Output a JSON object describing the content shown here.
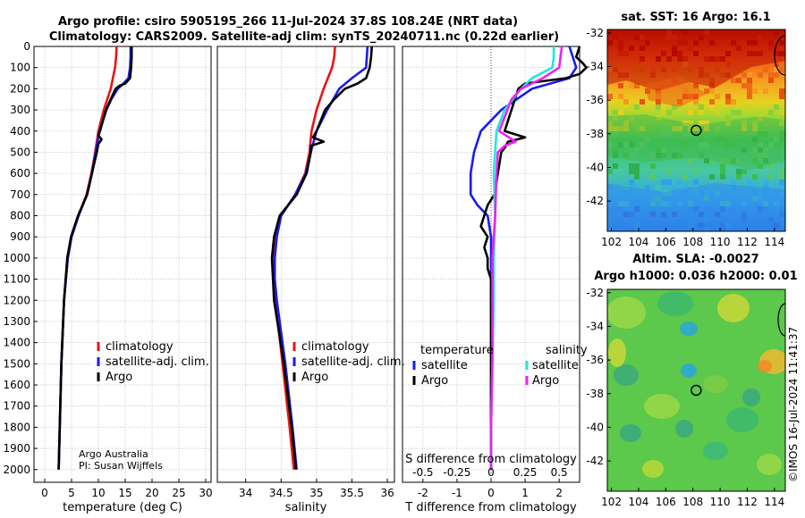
{
  "header": {
    "title_line1": "Argo profile: csiro 5905195_266 11-Jul-2024 37.8S 108.24E (NRT data)",
    "title_line2": "Climatology: CARS2009. Satellite-adj clim: synTS_20240711.nc (0.22d earlier)"
  },
  "depth_ticks": [
    0,
    100,
    200,
    300,
    400,
    500,
    600,
    700,
    800,
    900,
    1000,
    1100,
    1200,
    1300,
    1400,
    1500,
    1600,
    1700,
    1800,
    1900,
    2000
  ],
  "credits": {
    "line1": "Argo Australia",
    "line2": "PI: Susan Wijffels"
  },
  "footer": "©IMOS 16-Jul-2024 11:41:37",
  "colors": {
    "climatology": "#ee1111",
    "satellite": "#1a1aee",
    "argo": "#000000",
    "sat_salinity": "#22e4e4",
    "argo_salinity": "#ee22ee"
  },
  "chart_data": [
    {
      "id": "temperature",
      "type": "line",
      "xlabel": "temperature (deg C)",
      "ylabel": "",
      "xlim": [
        -2,
        31
      ],
      "ylim": [
        2060,
        0
      ],
      "xticks": [
        0,
        5,
        10,
        15,
        20,
        25,
        30
      ],
      "legend": [
        "climatology",
        "satellite-adj. clim.",
        "Argo"
      ],
      "series": [
        {
          "name": "climatology",
          "color": "#ee1111",
          "depth": [
            0,
            50,
            100,
            200,
            300,
            400,
            500,
            600,
            700,
            800,
            900,
            1000,
            1200,
            1500,
            1800,
            2000
          ],
          "values": [
            13.4,
            13.3,
            13.1,
            12.3,
            11.0,
            10.0,
            9.4,
            8.7,
            7.8,
            6.3,
            5.0,
            4.3,
            3.6,
            3.1,
            2.8,
            2.6
          ]
        },
        {
          "name": "satellite-adj. clim.",
          "color": "#1a1aee",
          "depth": [
            0,
            50,
            100,
            150,
            180,
            200,
            250,
            300,
            400,
            500,
            600,
            700,
            800,
            900,
            1000,
            1200,
            1500,
            1800,
            2000
          ],
          "values": [
            16.0,
            16.0,
            15.9,
            15.6,
            14.5,
            13.6,
            12.4,
            11.5,
            10.2,
            9.5,
            8.8,
            7.9,
            6.3,
            5.0,
            4.3,
            3.6,
            3.1,
            2.8,
            2.6
          ]
        },
        {
          "name": "Argo",
          "color": "#000000",
          "depth": [
            0,
            50,
            100,
            150,
            175,
            185,
            200,
            250,
            300,
            400,
            420,
            440,
            460,
            500,
            600,
            700,
            800,
            900,
            1000,
            1200,
            1500,
            1800,
            2000
          ],
          "values": [
            16.2,
            16.2,
            16.1,
            15.9,
            15.0,
            14.0,
            13.2,
            12.3,
            11.4,
            10.3,
            10.0,
            10.6,
            10.0,
            9.7,
            8.8,
            7.9,
            6.2,
            4.9,
            4.2,
            3.6,
            3.1,
            2.8,
            2.6
          ]
        }
      ]
    },
    {
      "id": "salinity",
      "type": "line",
      "xlabel": "salinity",
      "ylabel": "",
      "xlim": [
        33.6,
        36.1
      ],
      "ylim": [
        2060,
        0
      ],
      "xticks": [
        34,
        34.5,
        35,
        35.5,
        36
      ],
      "legend": [
        "climatology",
        "satellite-adj. clim.",
        "Argo"
      ],
      "series": [
        {
          "name": "climatology",
          "color": "#ee1111",
          "depth": [
            0,
            50,
            100,
            200,
            300,
            400,
            500,
            600,
            700,
            800,
            900,
            1000,
            1100,
            1200,
            1500,
            1800,
            2000
          ],
          "values": [
            35.26,
            35.25,
            35.22,
            35.1,
            35.0,
            34.93,
            34.9,
            34.84,
            34.7,
            34.5,
            34.43,
            34.4,
            34.4,
            34.42,
            34.52,
            34.62,
            34.68
          ]
        },
        {
          "name": "satellite-adj. clim.",
          "color": "#1a1aee",
          "depth": [
            0,
            50,
            100,
            150,
            200,
            300,
            400,
            500,
            600,
            700,
            800,
            900,
            1000,
            1100,
            1200,
            1500,
            1800,
            2000
          ],
          "values": [
            35.72,
            35.71,
            35.7,
            35.5,
            35.32,
            35.15,
            35.0,
            34.92,
            34.85,
            34.7,
            34.5,
            34.44,
            34.41,
            34.41,
            34.44,
            34.56,
            34.66,
            34.72
          ]
        },
        {
          "name": "Argo",
          "color": "#000000",
          "depth": [
            0,
            50,
            100,
            150,
            175,
            200,
            250,
            300,
            400,
            430,
            450,
            470,
            500,
            600,
            700,
            800,
            900,
            1000,
            1200,
            1500,
            1800,
            2000
          ],
          "values": [
            35.78,
            35.77,
            35.75,
            35.7,
            35.58,
            35.4,
            35.25,
            35.12,
            35.0,
            34.95,
            35.1,
            34.92,
            34.92,
            34.86,
            34.72,
            34.48,
            34.4,
            34.37,
            34.4,
            34.54,
            34.65,
            34.71
          ]
        }
      ]
    },
    {
      "id": "differences",
      "type": "line",
      "xlabel": "T difference from climatology",
      "xlabel_top": "S difference from climatology",
      "xlim": [
        -2.6,
        2.6
      ],
      "ylim": [
        2060,
        0
      ],
      "xticks": [
        -2,
        -1,
        0,
        1,
        2
      ],
      "top_ticks": [
        {
          "v": -0.5,
          "t": "-0.5"
        },
        {
          "v": -0.25,
          "t": "-0.25"
        },
        {
          "v": 0,
          "t": "0"
        },
        {
          "v": 0.25,
          "t": "0.25"
        },
        {
          "v": 0.5,
          "t": "0.5"
        }
      ],
      "legend_temperature": [
        "temperature",
        "satellite",
        "Argo"
      ],
      "legend_salinity": [
        "salinity",
        "satellite",
        "Argo"
      ],
      "series": [
        {
          "name": "T satellite",
          "color": "#1a1aee",
          "depth": [
            0,
            50,
            100,
            150,
            200,
            300,
            400,
            500,
            600,
            700,
            750,
            800,
            900,
            1000,
            1200,
            1500,
            1800,
            2000
          ],
          "values": [
            2.3,
            2.4,
            2.5,
            2.3,
            1.2,
            0.3,
            -0.3,
            -0.5,
            -0.6,
            -0.6,
            -0.4,
            -0.1,
            0,
            0,
            0,
            0,
            0,
            0
          ]
        },
        {
          "name": "T Argo",
          "color": "#000000",
          "depth": [
            0,
            50,
            80,
            100,
            130,
            150,
            175,
            200,
            300,
            400,
            430,
            450,
            480,
            500,
            600,
            700,
            750,
            800,
            850,
            900,
            950,
            1000,
            1050,
            1100,
            1200,
            1500,
            1800,
            2000
          ],
          "values": [
            2.6,
            2.5,
            2.7,
            2.8,
            2.6,
            2.2,
            1.0,
            0.8,
            0.6,
            0.4,
            1.0,
            0.5,
            0.4,
            0.3,
            0.2,
            0.1,
            -0.1,
            -0.2,
            -0.3,
            -0.1,
            -0.2,
            -0.1,
            -0.1,
            0,
            0,
            0,
            0,
            0
          ]
        },
        {
          "name": "S satellite",
          "color": "#22e4e4",
          "depth": [
            0,
            50,
            100,
            150,
            200,
            300,
            400,
            600,
            800,
            1000,
            1200,
            1500,
            1800,
            2000
          ],
          "values": [
            0.46,
            0.46,
            0.45,
            0.3,
            0.22,
            0.1,
            0.04,
            0.02,
            0.03,
            0.02,
            0.02,
            0.01,
            0,
            0
          ]
        },
        {
          "name": "S Argo",
          "color": "#ee22ee",
          "depth": [
            0,
            50,
            100,
            150,
            200,
            250,
            300,
            400,
            450,
            470,
            500,
            600,
            800,
            1000,
            1200,
            1500,
            1800,
            2000
          ],
          "values": [
            0.52,
            0.51,
            0.5,
            0.38,
            0.22,
            0.15,
            0.12,
            0.06,
            0.18,
            0.1,
            0.05,
            0.04,
            0.03,
            0.01,
            0.01,
            0.01,
            0,
            0
          ]
        }
      ]
    },
    {
      "id": "sst_map",
      "type": "heatmap",
      "title": "sat. SST: 16 Argo: 16.1",
      "xlim": [
        101.7,
        114.8
      ],
      "ylim": [
        -43.8,
        -31.8
      ],
      "xticks": [
        102,
        104,
        106,
        108,
        110,
        112,
        114
      ],
      "yticks": [
        -32,
        -34,
        -36,
        -38,
        -40,
        -42
      ],
      "marker": {
        "lon": 108.24,
        "lat": -37.8
      }
    },
    {
      "id": "sla_map",
      "type": "heatmap",
      "title": "Altim. SLA: -0.0027",
      "subtitle": "Argo h1000: 0.036 h2000: 0.01",
      "xlim": [
        101.7,
        114.8
      ],
      "ylim": [
        -43.8,
        -31.8
      ],
      "xticks": [
        102,
        104,
        106,
        108,
        110,
        112,
        114
      ],
      "yticks": [
        -32,
        -34,
        -36,
        -38,
        -40,
        -42
      ],
      "marker": {
        "lon": 108.24,
        "lat": -37.8
      }
    }
  ]
}
